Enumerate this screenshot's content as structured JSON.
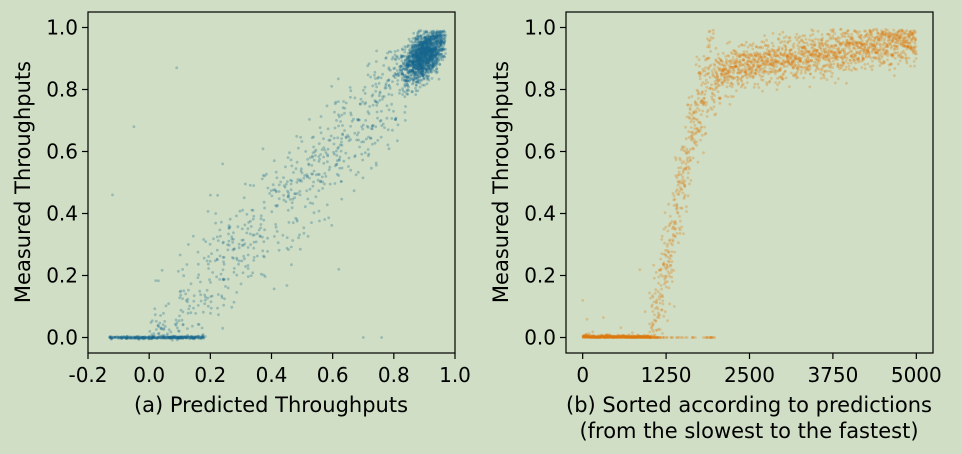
{
  "colors": {
    "background": "#cfdec4",
    "left_series": "#17668f",
    "right_series": "#dd7a12"
  },
  "chart_data": [
    {
      "type": "scatter",
      "xlabel": "(a) Predicted Throughputs",
      "ylabel": "Measured Throughputs",
      "xlim": [
        -0.2,
        1.0
      ],
      "ylim": [
        -0.05,
        1.05
      ],
      "xticks": [
        -0.2,
        0.0,
        0.2,
        0.4,
        0.6,
        0.8,
        1.0
      ],
      "xtick_labels": [
        "-0.2",
        "0.0",
        "0.2",
        "0.4",
        "0.6",
        "0.8",
        "1.0"
      ],
      "yticks": [
        0.0,
        0.2,
        0.4,
        0.6,
        0.8,
        1.0
      ],
      "ytick_labels": [
        "0.0",
        "0.2",
        "0.4",
        "0.6",
        "0.8",
        "1.0"
      ],
      "grid": false,
      "series": [
        {
          "color": "#17668f",
          "alpha": 0.3,
          "clusters": [
            {
              "x_range": [
                -0.13,
                0.18
              ],
              "y": 0.0,
              "count": 320
            },
            {
              "x_center": 0.9,
              "y_center": 0.91,
              "x_spread": 0.05,
              "y_spread": 0.05,
              "count": 1500
            },
            {
              "trend": "y ≈ x",
              "x_range": [
                0.0,
                0.85
              ],
              "count": 700
            }
          ]
        }
      ]
    },
    {
      "type": "scatter",
      "xlabel": "(b) Sorted according to predictions",
      "xlabel_line2": "(from the slowest to the fastest)",
      "ylabel": "Measured Throughputs",
      "xlim": [
        -250,
        5250
      ],
      "ylim": [
        -0.05,
        1.05
      ],
      "xticks": [
        0,
        1250,
        2500,
        3750,
        5000
      ],
      "xtick_labels": [
        "0",
        "1250",
        "2500",
        "3750",
        "5000"
      ],
      "yticks": [
        0.0,
        0.2,
        0.4,
        0.6,
        0.8,
        1.0
      ],
      "ytick_labels": [
        "0.0",
        "0.2",
        "0.4",
        "0.6",
        "0.8",
        "1.0"
      ],
      "grid": false,
      "series": [
        {
          "color": "#dd7a12",
          "alpha": 0.3,
          "trend": {
            "x": [
              0,
              1000,
              1150,
              1300,
              1450,
              1600,
              1800,
              2000,
              2500,
              3000,
              3750,
              4500,
              5000
            ],
            "y": [
              0.0,
              0.0,
              0.12,
              0.28,
              0.45,
              0.62,
              0.8,
              0.85,
              0.88,
              0.9,
              0.92,
              0.95,
              0.96
            ]
          },
          "count": 5000
        }
      ]
    }
  ]
}
